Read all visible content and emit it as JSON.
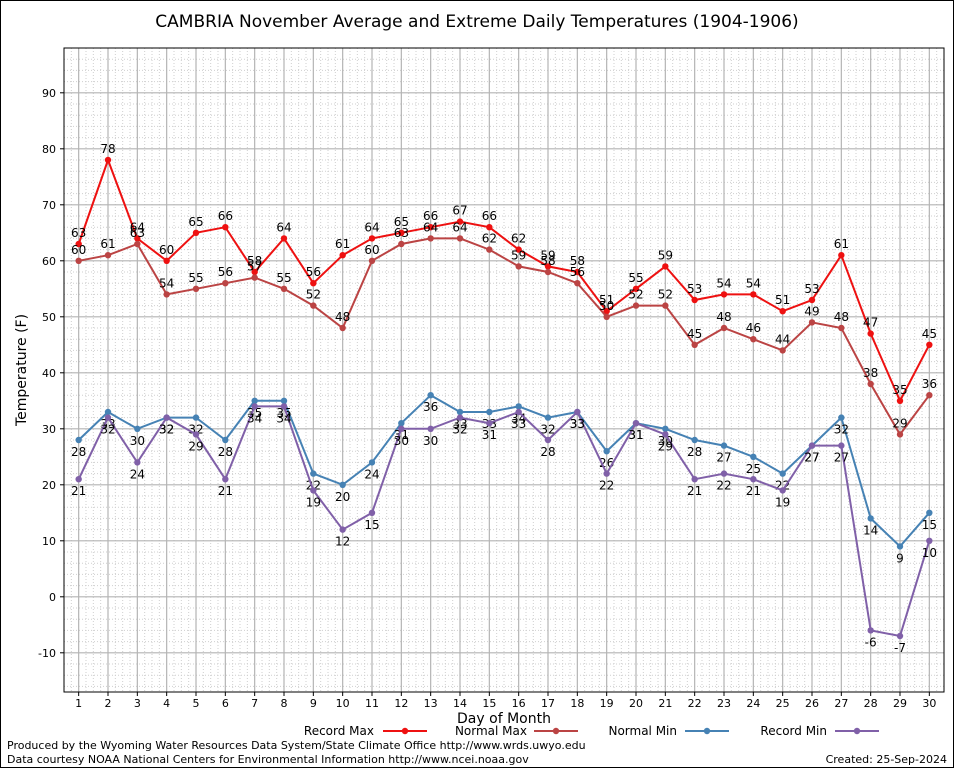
{
  "chart_data": {
    "type": "line",
    "title": "CAMBRIA November Average and Extreme Daily Temperatures (1904-1906)",
    "xlabel": "Day of Month",
    "ylabel": "Temperature (F)",
    "x": [
      1,
      2,
      3,
      4,
      5,
      6,
      7,
      8,
      9,
      10,
      11,
      12,
      13,
      14,
      15,
      16,
      17,
      18,
      19,
      20,
      21,
      22,
      23,
      24,
      25,
      26,
      27,
      28,
      29,
      30
    ],
    "xlim": [
      0.5,
      30.5
    ],
    "ylim": [
      -17,
      98
    ],
    "yticks": [
      -10,
      0,
      10,
      20,
      30,
      40,
      50,
      60,
      70,
      80,
      90
    ],
    "grid": true,
    "legend_position": "bottom",
    "series": [
      {
        "name": "Record Max",
        "color": "#ee1111",
        "label_side": "above",
        "values": [
          63,
          78,
          64,
          60,
          65,
          66,
          58,
          64,
          56,
          61,
          64,
          65,
          66,
          67,
          66,
          62,
          59,
          58,
          51,
          55,
          59,
          53,
          54,
          54,
          51,
          53,
          61,
          47,
          35,
          45
        ]
      },
      {
        "name": "Normal Max",
        "color": "#bb4444",
        "label_side": "above",
        "values": [
          60,
          61,
          63,
          54,
          55,
          56,
          57,
          55,
          52,
          48,
          60,
          63,
          64,
          64,
          62,
          59,
          58,
          56,
          50,
          52,
          52,
          45,
          48,
          46,
          44,
          49,
          48,
          38,
          29,
          36
        ]
      },
      {
        "name": "Normal Min",
        "color": "#4682b4",
        "label_side": "below",
        "values": [
          28,
          33,
          30,
          32,
          32,
          28,
          35,
          35,
          22,
          20,
          24,
          31,
          36,
          33,
          33,
          34,
          32,
          33,
          26,
          31,
          30,
          28,
          27,
          25,
          22,
          27,
          32,
          14,
          9,
          15
        ]
      },
      {
        "name": "Record Min",
        "color": "#8060a8",
        "label_side": "below",
        "values": [
          21,
          32,
          24,
          32,
          29,
          21,
          34,
          34,
          19,
          12,
          15,
          30,
          30,
          32,
          31,
          33,
          28,
          33,
          22,
          31,
          29,
          21,
          22,
          21,
          19,
          27,
          27,
          -6,
          -7,
          10
        ]
      }
    ]
  },
  "footer": {
    "produced_by": "Produced by the Wyoming Water Resources Data System/State Climate Office http://www.wrds.uwyo.edu",
    "courtesy": "Data courtesy NOAA National Centers for Environmental Information http://www.ncei.noaa.gov",
    "created": "Created:  25-Sep-2024"
  }
}
